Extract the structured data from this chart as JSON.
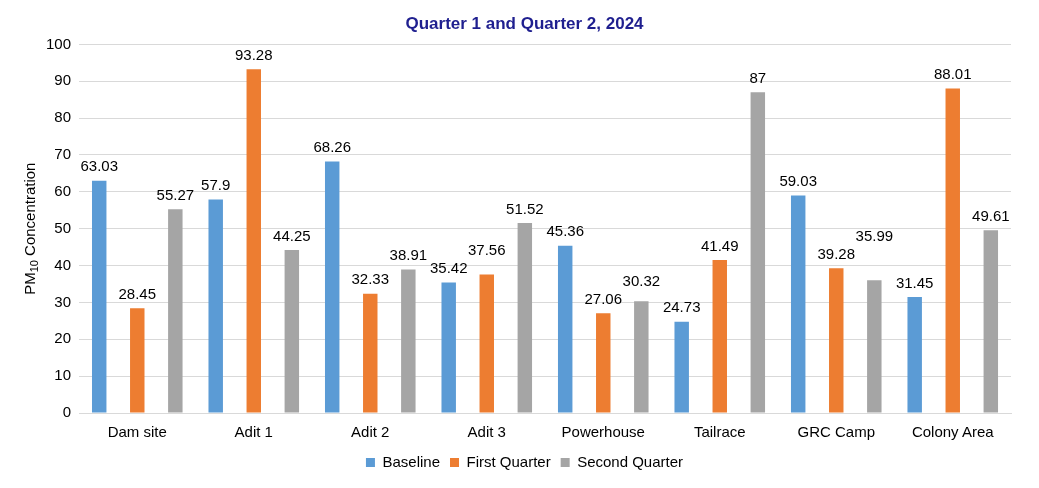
{
  "chart_data": {
    "type": "bar",
    "title": "Quarter 1 and Quarter 2, 2024",
    "ylabel": "PM$_{10}$ Concentration",
    "categories": [
      "Dam site",
      "Adit 1",
      "Adit 2",
      "Adit 3",
      "Powerhouse",
      "Tailrace",
      "GRC Camp",
      "Colony Area"
    ],
    "series": [
      {
        "name": "Baseline",
        "color": "#5b9bd5",
        "values": [
          63.03,
          57.9,
          68.26,
          35.42,
          45.36,
          24.73,
          59.03,
          31.45
        ]
      },
      {
        "name": "First Quarter",
        "color": "#ed7d31",
        "values": [
          28.45,
          93.28,
          32.33,
          37.56,
          27.06,
          41.49,
          39.28,
          88.01
        ]
      },
      {
        "name": "Second Quarter",
        "color": "#a5a5a5",
        "values": [
          55.27,
          44.25,
          38.91,
          51.52,
          30.32,
          87,
          35.99,
          49.61
        ]
      }
    ],
    "ylim": [
      0,
      100
    ],
    "yticks": [
      0,
      10,
      20,
      30,
      40,
      50,
      60,
      70,
      80,
      90,
      100
    ],
    "grid": "y",
    "legend": "bottom",
    "data_labels": true
  }
}
